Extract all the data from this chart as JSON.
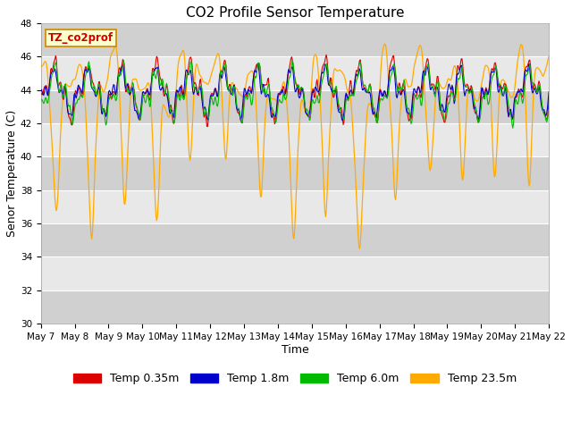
{
  "title": "CO2 Profile Sensor Temperature",
  "xlabel": "Time",
  "ylabel": "Senor Temperature (C)",
  "ylim": [
    30,
    48
  ],
  "yticks": [
    30,
    32,
    34,
    36,
    38,
    40,
    42,
    44,
    46,
    48
  ],
  "legend_label": "TZ_co2prof",
  "series_labels": [
    "Temp 0.35m",
    "Temp 1.8m",
    "Temp 6.0m",
    "Temp 23.5m"
  ],
  "series_colors": [
    "#dd0000",
    "#0000cc",
    "#00bb00",
    "#ffaa00"
  ],
  "background_color": "#ffffff",
  "plot_bg_color": "#e0e0e0",
  "grid_color": "#ffffff",
  "title_fontsize": 11,
  "axis_label_fontsize": 9,
  "tick_fontsize": 7.5,
  "legend_fontsize": 9
}
